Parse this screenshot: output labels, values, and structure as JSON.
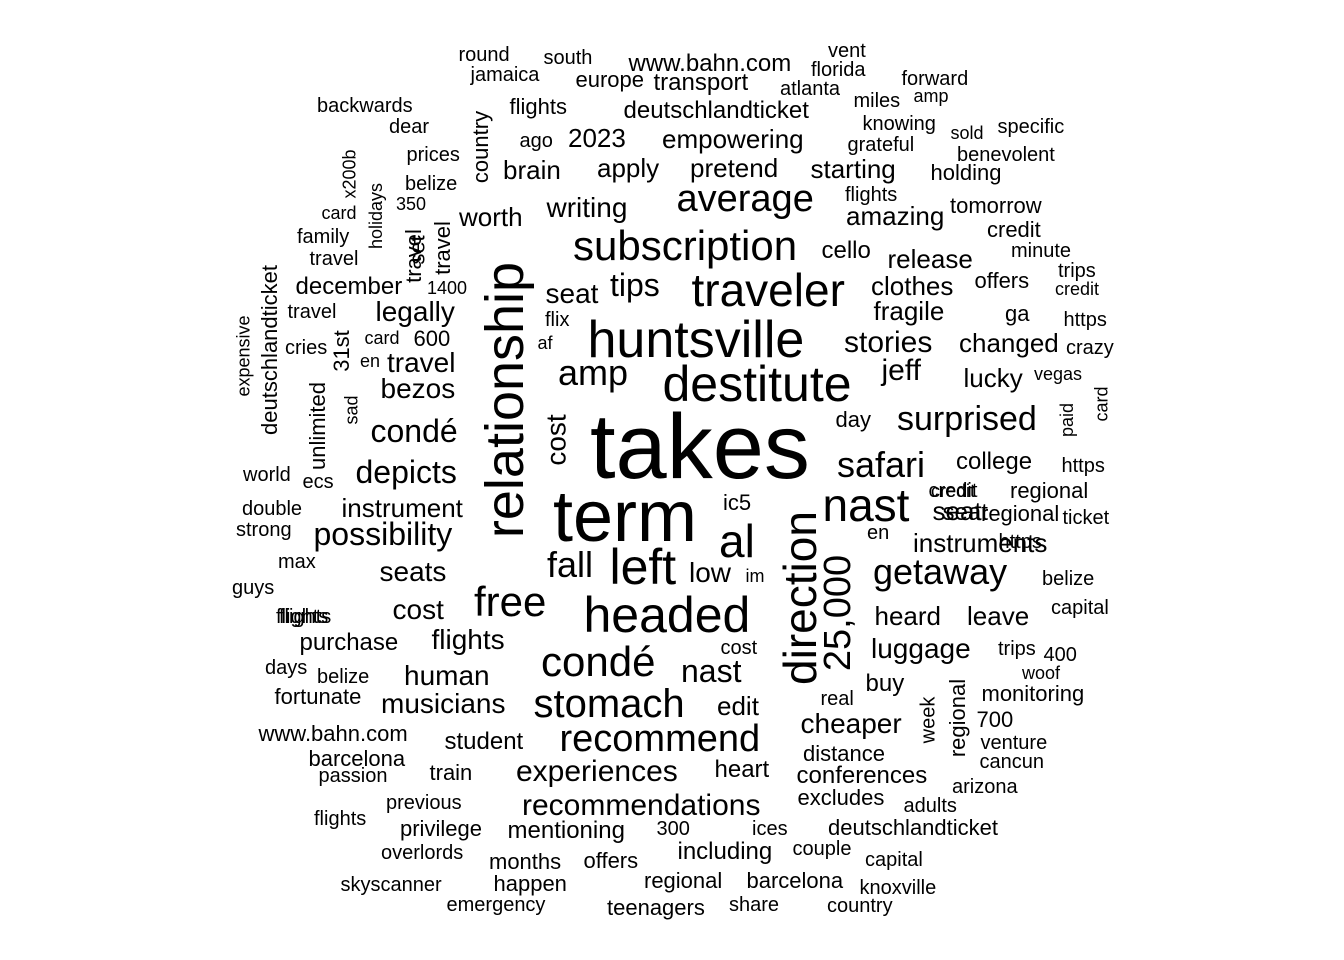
{
  "cloud": {
    "color": "#000000",
    "background": "#ffffff",
    "words": [
      "takes",
      "term",
      "relationship",
      "huntsville",
      "destitute",
      "headed",
      "direction",
      "subscription",
      "traveler",
      "left",
      "al",
      "nast",
      "condé",
      "25,000",
      "free",
      "average",
      "stomach",
      "recommend",
      "amp",
      "fall",
      "safari",
      "getaway",
      "surprised",
      "depicts",
      "condé",
      "possibility",
      "recommendations",
      "experiences",
      "nast",
      "tips",
      "stories",
      "jeff",
      "writing",
      "luggage",
      "travel",
      "seats",
      "cost",
      "low",
      "cost",
      "human",
      "musicians",
      "flights",
      "cheaper",
      "conferences",
      "edit",
      "bezos",
      "legally",
      "seat",
      "worth",
      "brain",
      "apply",
      "pretend",
      "starting",
      "amazing",
      "empowering",
      "deutschlandticket",
      "2023",
      "www.bahn.com",
      "transport",
      "europe",
      "release",
      "clothes",
      "fragile",
      "instruments",
      "heard",
      "leave",
      "college",
      "changed",
      "lucky",
      "regional",
      "seat",
      "instrument",
      "student",
      "mentioning",
      "including",
      "heart",
      "distance",
      "buy",
      "regional",
      "week",
      "december",
      "travel",
      "cello",
      "purchase",
      "unlimited",
      "deutschlandticket",
      "31st",
      "set",
      "holidays",
      "country",
      "offers",
      "happen",
      "months",
      "offers",
      "train",
      "excludes",
      "couple",
      "ic5",
      "day",
      "travel",
      "flights",
      "ago",
      "prices",
      "belize",
      "dear",
      "backwards",
      "jamaica",
      "round",
      "south",
      "florida",
      "atlanta",
      "vent",
      "forward",
      "miles",
      "amp",
      "knowing",
      "specific",
      "sold",
      "benevolent",
      "grateful",
      "holding",
      "tomorrow",
      "credit",
      "flights",
      "minute",
      "trips",
      "credit",
      "https",
      "ga",
      "crazy",
      "vegas",
      "card",
      "paid",
      "https",
      "regional",
      "credit",
      "ticket",
      "belize",
      "capital",
      "trips",
      "400",
      "woof",
      "monitoring",
      "700",
      "venture",
      "cancun",
      "arizona",
      "adults",
      "deutschlandticket",
      "capital",
      "knoxville",
      "country",
      "share",
      "barcelona",
      "teenagers",
      "emergency",
      "skyscanner",
      "overlords",
      "privilege",
      "previous",
      "flights",
      "passion",
      "barcelona",
      "www.bahn.com",
      "fortunate",
      "belize",
      "days",
      "flights",
      "guys",
      "max",
      "strong",
      "double",
      "world",
      "ecs",
      "sad",
      "en",
      "card",
      "600",
      "cries",
      "travel",
      "expensive",
      "1400",
      "travel",
      "family",
      "card",
      "350",
      "x200b",
      "af",
      "flix",
      "en",
      "im",
      "cost",
      "real",
      "ices",
      "300",
      "regional",
      "https",
      "credit",
      "seat",
      "flights"
    ]
  }
}
